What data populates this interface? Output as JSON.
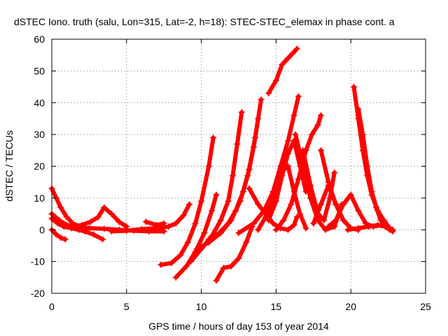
{
  "chart_data": {
    "type": "scatter",
    "title": "dSTEC Iono. truth (salu, Lon=315, Lat=-2, h=18): STEC-STEC_elemax in phase cont. a",
    "xlabel": "GPS time / hours of day 153 of year 2014",
    "ylabel": "dSTEC  / TECUs",
    "xlim": [
      0,
      25
    ],
    "ylim": [
      -20,
      60
    ],
    "xticks": [
      0,
      5,
      10,
      15,
      20,
      25
    ],
    "yticks": [
      -20,
      -10,
      0,
      10,
      20,
      30,
      40,
      50,
      60
    ],
    "grid": true,
    "marker": "+",
    "color": "#ff0000",
    "series": [
      {
        "x": [
          0.0,
          0.3,
          0.6,
          0.9
        ],
        "y": [
          0.0,
          -1.5,
          -2.5,
          -3.0
        ]
      },
      {
        "x": [
          0.0,
          0.4,
          0.8,
          1.3,
          1.8,
          2.2,
          2.8,
          3.4
        ],
        "y": [
          3.5,
          2.0,
          1.0,
          0.5,
          0.0,
          -0.5,
          -1.5,
          -3.0
        ]
      },
      {
        "x": [
          0.0,
          0.3,
          0.6,
          1.0,
          1.4,
          1.9
        ],
        "y": [
          13.0,
          10.0,
          7.0,
          4.0,
          2.0,
          1.0
        ]
      },
      {
        "x": [
          0.0,
          0.5,
          1.0,
          1.5,
          2.0,
          2.6,
          3.1,
          3.5
        ],
        "y": [
          5.0,
          3.0,
          1.5,
          1.0,
          1.5,
          2.5,
          4.0,
          7.0
        ]
      },
      {
        "x": [
          0.8,
          1.5,
          2.5,
          3.5,
          4.5,
          5.5,
          6.5,
          7.5
        ],
        "y": [
          1.5,
          1.0,
          0.5,
          0.3,
          0.0,
          -0.3,
          -0.5,
          -0.5
        ]
      },
      {
        "x": [
          3.5,
          4.0,
          4.5,
          5.0
        ],
        "y": [
          7.0,
          5.0,
          2.5,
          1.0
        ]
      },
      {
        "x": [
          4.0,
          5.0,
          6.0,
          7.0,
          7.8,
          8.3,
          8.8,
          9.2
        ],
        "y": [
          -0.5,
          -0.3,
          0.2,
          0.5,
          1.0,
          2.0,
          4.5,
          8.0
        ]
      },
      {
        "x": [
          6.3,
          7.0,
          7.5
        ],
        "y": [
          2.5,
          1.5,
          2.0
        ]
      },
      {
        "x": [
          7.3,
          8.0,
          8.6,
          9.1,
          9.6,
          10.0,
          10.5,
          10.8
        ],
        "y": [
          -11.0,
          -10.5,
          -8.0,
          -4.0,
          2.0,
          9.0,
          20.0,
          29.0
        ]
      },
      {
        "x": [
          8.3,
          9.0,
          9.6,
          10.2,
          10.7,
          11.0
        ],
        "y": [
          -15.0,
          -11.5,
          -7.0,
          -1.0,
          6.0,
          11.0
        ]
      },
      {
        "x": [
          9.3,
          10.0,
          10.7,
          11.3,
          11.8,
          12.1,
          12.4,
          12.7
        ],
        "y": [
          -10.0,
          -6.0,
          -2.0,
          3.0,
          9.0,
          17.0,
          27.0,
          37.0
        ]
      },
      {
        "x": [
          9.7,
          10.5,
          11.3,
          12.0,
          12.6,
          13.1,
          13.5,
          13.8
        ],
        "y": [
          -6.0,
          -4.0,
          -1.0,
          3.0,
          9.0,
          17.0,
          26.0,
          35.0
        ]
      },
      {
        "x": [
          10.5,
          11.2,
          11.8,
          12.3,
          12.8,
          13.2,
          13.6,
          14.0
        ],
        "y": [
          -3.0,
          -1.0,
          2.0,
          6.0,
          12.0,
          19.0,
          29.0,
          41.0
        ]
      },
      {
        "x": [
          11.0,
          11.5,
          12.0,
          12.5,
          13.0,
          13.4
        ],
        "y": [
          -16.0,
          -12.0,
          -11.5,
          -9.0,
          -4.0,
          1.0
        ]
      },
      {
        "x": [
          12.5,
          13.5,
          14.2,
          14.8,
          15.3,
          15.8,
          16.2,
          16.5
        ],
        "y": [
          -1.0,
          2.0,
          6.0,
          12.0,
          20.0,
          28.0,
          36.0,
          42.0
        ]
      },
      {
        "x": [
          13.2,
          13.8,
          14.3,
          14.8,
          15.3,
          15.8,
          16.2,
          16.4
        ],
        "y": [
          13.0,
          8.0,
          5.0,
          2.0,
          0.5,
          0.0,
          1.5,
          4.0
        ]
      },
      {
        "x": [
          13.8,
          14.3,
          14.8,
          15.3,
          15.8,
          16.2,
          16.6,
          17.0
        ],
        "y": [
          0.0,
          4.0,
          10.0,
          18.0,
          20.0,
          12.0,
          5.0,
          0.5
        ]
      },
      {
        "x": [
          14.5,
          15.0,
          15.4,
          15.8,
          16.1,
          16.4
        ],
        "y": [
          43.0,
          47.0,
          52.0,
          54.0,
          55.5,
          57.0
        ]
      },
      {
        "x": [
          14.5,
          15.0,
          15.4,
          15.8,
          16.2,
          16.6,
          17.0
        ],
        "y": [
          3.0,
          9.0,
          17.0,
          24.0,
          28.0,
          20.0,
          12.0
        ]
      },
      {
        "x": [
          15.0,
          15.5,
          16.0,
          16.5,
          17.0,
          17.4,
          17.8,
          18.0
        ],
        "y": [
          0.0,
          3.0,
          8.0,
          16.0,
          25.0,
          30.0,
          33.0,
          36.0
        ]
      },
      {
        "x": [
          16.3,
          16.8,
          17.3,
          17.8,
          18.3,
          18.9,
          19.4
        ],
        "y": [
          30.0,
          20.0,
          10.0,
          3.0,
          0.0,
          1.0,
          8.0
        ]
      },
      {
        "x": [
          16.8,
          17.3,
          17.8,
          18.2,
          18.6,
          18.9
        ],
        "y": [
          25.0,
          14.0,
          5.0,
          3.0,
          10.0,
          18.0
        ]
      },
      {
        "x": [
          17.5,
          18.0,
          18.5,
          19.0,
          19.5,
          20.0,
          20.5
        ],
        "y": [
          2.0,
          8.0,
          14.0,
          8.0,
          3.0,
          0.5,
          0.0
        ]
      },
      {
        "x": [
          18.0,
          18.5,
          19.0,
          19.5,
          20.0,
          20.5
        ],
        "y": [
          25.0,
          15.0,
          8.0,
          3.0,
          0.5,
          0.0
        ]
      },
      {
        "x": [
          18.5,
          19.0,
          19.5,
          20.0,
          20.5,
          21.0,
          21.5,
          22.0
        ],
        "y": [
          1.0,
          3.0,
          8.0,
          11.0,
          6.0,
          2.0,
          1.0,
          1.5
        ]
      },
      {
        "x": [
          20.2,
          20.5,
          20.8,
          21.1,
          21.4,
          21.8,
          22.2,
          22.6,
          22.8
        ],
        "y": [
          45.0,
          35.0,
          25.0,
          17.0,
          11.0,
          6.0,
          3.0,
          0.5,
          0.0
        ]
      },
      {
        "x": [
          20.5,
          20.8,
          21.1,
          21.4,
          21.7,
          22.0,
          22.3,
          22.6,
          22.8
        ],
        "y": [
          38.0,
          30.0,
          20.0,
          12.0,
          7.0,
          3.0,
          1.0,
          0.0,
          -0.5
        ]
      },
      {
        "x": [
          19.8,
          20.5,
          21.2,
          21.8,
          22.3,
          22.8
        ],
        "y": [
          0.0,
          0.5,
          1.0,
          1.5,
          1.0,
          0.0
        ]
      }
    ]
  }
}
